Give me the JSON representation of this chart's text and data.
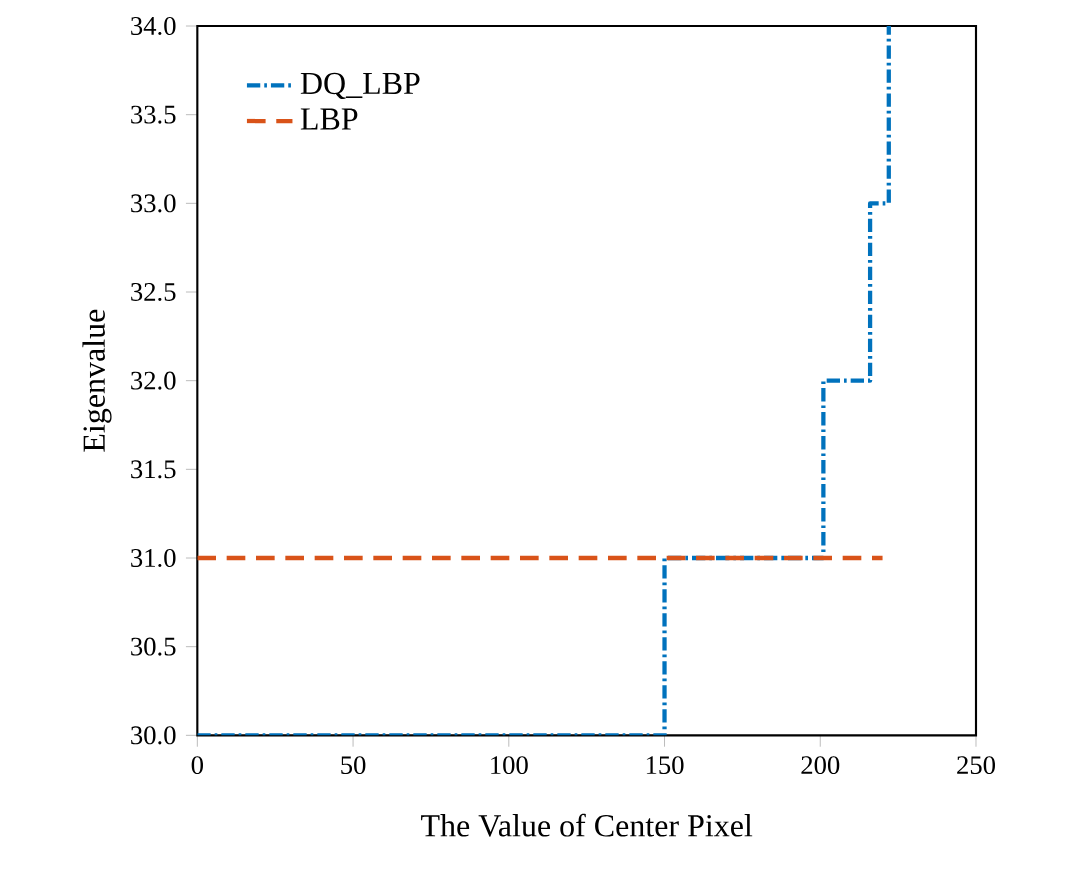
{
  "chart_data": {
    "type": "step",
    "xlabel": "The Value of Center Pixel",
    "ylabel": "Eigenvalue",
    "xlim": [
      0,
      250
    ],
    "xticks": [
      0,
      50,
      100,
      150,
      200,
      250
    ],
    "ylim": [
      30,
      34
    ],
    "yticks": [
      {
        "value": 30,
        "label": "30.0"
      },
      {
        "value": 30.5,
        "label": "30.5"
      },
      {
        "value": 31,
        "label": "31.0"
      },
      {
        "value": 31.5,
        "label": "31.5"
      },
      {
        "value": 32,
        "label": "32.0"
      },
      {
        "value": 32.5,
        "label": "32.5"
      },
      {
        "value": 33,
        "label": "33.0"
      },
      {
        "value": 33.5,
        "label": "33.5"
      },
      {
        "value": 34,
        "label": "34.0"
      }
    ],
    "legend": "top left",
    "series": [
      {
        "name": "DQ_LBP",
        "color": "#0072bd",
        "line_style": "dashdot",
        "x": [
          0,
          150,
          201,
          216,
          222
        ],
        "values": [
          30,
          31,
          32,
          33,
          34
        ]
      },
      {
        "name": "LBP",
        "type": "line",
        "color": "#d95319",
        "line_style": "dashed",
        "x": [
          0,
          220
        ],
        "values": [
          31,
          31
        ]
      }
    ]
  }
}
